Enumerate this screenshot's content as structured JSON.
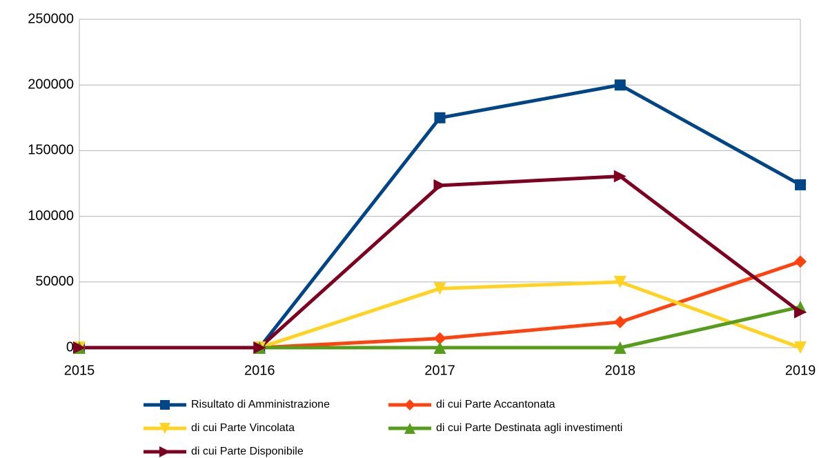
{
  "chart_data": {
    "type": "line",
    "x": [
      2015,
      2016,
      2017,
      2018,
      2019
    ],
    "xlim": [
      2015,
      2019
    ],
    "xticks": [
      2015,
      2016,
      2017,
      2018,
      2019
    ],
    "ylim": [
      0,
      250000
    ],
    "yticks": [
      0,
      50000,
      100000,
      150000,
      200000,
      250000
    ],
    "grid": true,
    "legend": "bottom",
    "series": [
      {
        "name": "Risultato di Amministrazione",
        "color": "#004586",
        "marker": "square",
        "values": [
          0,
          0,
          175000,
          200000,
          124000
        ]
      },
      {
        "name": "di cui Parte Accantonata",
        "color": "#ff420e",
        "marker": "diamond",
        "values": [
          0,
          0,
          7000,
          19500,
          65500
        ]
      },
      {
        "name": "di cui Parte Vincolata",
        "color": "#ffd320",
        "marker": "triangle-down",
        "values": [
          0,
          0,
          45000,
          50000,
          0
        ]
      },
      {
        "name": "di cui Parte Destinata agli investimenti",
        "color": "#579d1c",
        "marker": "triangle-up",
        "values": [
          0,
          0,
          0,
          0,
          31000
        ]
      },
      {
        "name": "di cui Parte Disponibile",
        "color": "#7e0021",
        "marker": "triangle-right",
        "values": [
          0,
          0,
          123500,
          130500,
          27000
        ]
      }
    ]
  }
}
